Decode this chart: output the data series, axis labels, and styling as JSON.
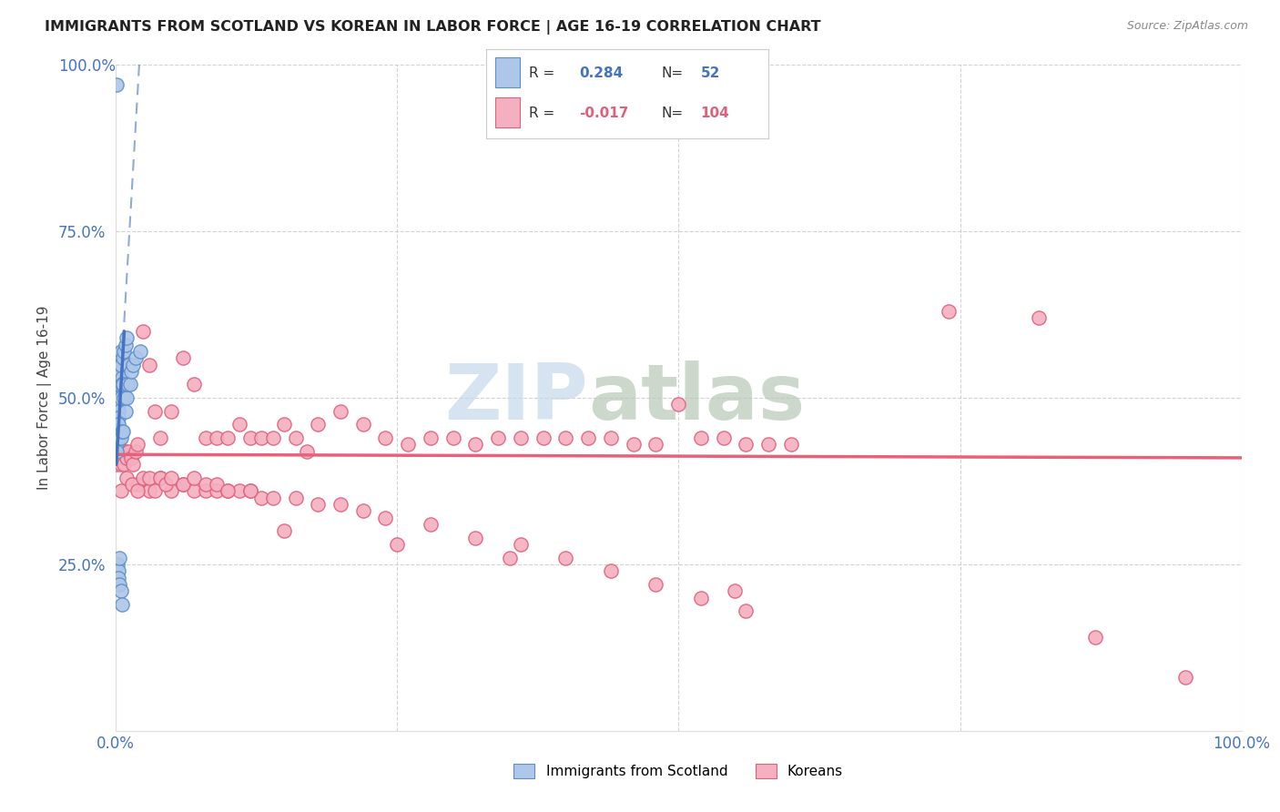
{
  "title": "IMMIGRANTS FROM SCOTLAND VS KOREAN IN LABOR FORCE | AGE 16-19 CORRELATION CHART",
  "source": "Source: ZipAtlas.com",
  "ylabel": "In Labor Force | Age 16-19",
  "xlim": [
    0.0,
    1.0
  ],
  "ylim": [
    0.0,
    1.0
  ],
  "xtick_vals": [
    0.0,
    0.25,
    0.5,
    0.75,
    1.0
  ],
  "ytick_vals": [
    0.0,
    0.25,
    0.5,
    0.75,
    1.0
  ],
  "xtick_labels": [
    "0.0%",
    "",
    "",
    "",
    "100.0%"
  ],
  "ytick_labels": [
    "",
    "25.0%",
    "50.0%",
    "75.0%",
    "100.0%"
  ],
  "scotland_R": 0.284,
  "scotland_N": 52,
  "korean_R": -0.017,
  "korean_N": 104,
  "scotland_color": "#aec6e8",
  "korean_color": "#f4afc0",
  "scotland_edge_color": "#5b8fc9",
  "korean_edge_color": "#e0607a",
  "scotland_trend_color": "#4472c4",
  "korean_trend_color": "#e8607a",
  "grid_color": "#c8c8c8",
  "background_color": "#ffffff",
  "watermark_zip_color": "#c5d8ec",
  "watermark_atlas_color": "#b8c8b8",
  "legend_border_color": "#cccccc",
  "tick_color": "#4472c4",
  "scotland_x": [
    0.001,
    0.001,
    0.001,
    0.001,
    0.001,
    0.002,
    0.002,
    0.002,
    0.002,
    0.002,
    0.002,
    0.002,
    0.003,
    0.003,
    0.003,
    0.003,
    0.003,
    0.003,
    0.003,
    0.003,
    0.003,
    0.004,
    0.004,
    0.004,
    0.004,
    0.004,
    0.004,
    0.005,
    0.005,
    0.005,
    0.005,
    0.005,
    0.006,
    0.006,
    0.006,
    0.006,
    0.007,
    0.007,
    0.007,
    0.008,
    0.008,
    0.009,
    0.009,
    0.01,
    0.01,
    0.011,
    0.012,
    0.013,
    0.014,
    0.016,
    0.018,
    0.022
  ],
  "scotland_y": [
    0.97,
    0.45,
    0.44,
    0.43,
    0.42,
    0.52,
    0.51,
    0.5,
    0.49,
    0.48,
    0.47,
    0.25,
    0.52,
    0.51,
    0.5,
    0.49,
    0.48,
    0.47,
    0.46,
    0.24,
    0.23,
    0.55,
    0.54,
    0.52,
    0.44,
    0.26,
    0.22,
    0.57,
    0.55,
    0.5,
    0.44,
    0.21,
    0.53,
    0.52,
    0.45,
    0.19,
    0.56,
    0.52,
    0.45,
    0.57,
    0.5,
    0.58,
    0.48,
    0.59,
    0.5,
    0.52,
    0.55,
    0.52,
    0.54,
    0.55,
    0.56,
    0.57
  ],
  "korean_x": [
    0.001,
    0.002,
    0.003,
    0.004,
    0.005,
    0.006,
    0.007,
    0.008,
    0.009,
    0.01,
    0.012,
    0.014,
    0.016,
    0.018,
    0.02,
    0.025,
    0.03,
    0.035,
    0.04,
    0.05,
    0.06,
    0.07,
    0.08,
    0.09,
    0.1,
    0.11,
    0.12,
    0.13,
    0.14,
    0.15,
    0.16,
    0.17,
    0.18,
    0.2,
    0.22,
    0.24,
    0.26,
    0.28,
    0.3,
    0.32,
    0.34,
    0.36,
    0.38,
    0.4,
    0.42,
    0.44,
    0.46,
    0.48,
    0.5,
    0.52,
    0.54,
    0.56,
    0.58,
    0.6,
    0.02,
    0.03,
    0.04,
    0.05,
    0.06,
    0.07,
    0.08,
    0.09,
    0.1,
    0.11,
    0.12,
    0.13,
    0.005,
    0.01,
    0.015,
    0.02,
    0.025,
    0.03,
    0.035,
    0.04,
    0.045,
    0.05,
    0.06,
    0.07,
    0.08,
    0.09,
    0.1,
    0.12,
    0.14,
    0.16,
    0.18,
    0.2,
    0.22,
    0.24,
    0.28,
    0.32,
    0.36,
    0.4,
    0.44,
    0.48,
    0.52,
    0.56,
    0.74,
    0.82,
    0.87,
    0.95,
    0.15,
    0.25,
    0.35,
    0.55
  ],
  "korean_y": [
    0.4,
    0.42,
    0.43,
    0.41,
    0.4,
    0.42,
    0.41,
    0.4,
    0.42,
    0.41,
    0.42,
    0.41,
    0.4,
    0.42,
    0.43,
    0.6,
    0.55,
    0.48,
    0.44,
    0.48,
    0.56,
    0.52,
    0.44,
    0.44,
    0.44,
    0.46,
    0.44,
    0.44,
    0.44,
    0.46,
    0.44,
    0.42,
    0.46,
    0.48,
    0.46,
    0.44,
    0.43,
    0.44,
    0.44,
    0.43,
    0.44,
    0.44,
    0.44,
    0.44,
    0.44,
    0.44,
    0.43,
    0.43,
    0.49,
    0.44,
    0.44,
    0.43,
    0.43,
    0.43,
    0.37,
    0.36,
    0.38,
    0.36,
    0.37,
    0.36,
    0.36,
    0.36,
    0.36,
    0.36,
    0.36,
    0.35,
    0.36,
    0.38,
    0.37,
    0.36,
    0.38,
    0.38,
    0.36,
    0.38,
    0.37,
    0.38,
    0.37,
    0.38,
    0.37,
    0.37,
    0.36,
    0.36,
    0.35,
    0.35,
    0.34,
    0.34,
    0.33,
    0.32,
    0.31,
    0.29,
    0.28,
    0.26,
    0.24,
    0.22,
    0.2,
    0.18,
    0.63,
    0.62,
    0.14,
    0.08,
    0.3,
    0.28,
    0.26,
    0.21
  ]
}
